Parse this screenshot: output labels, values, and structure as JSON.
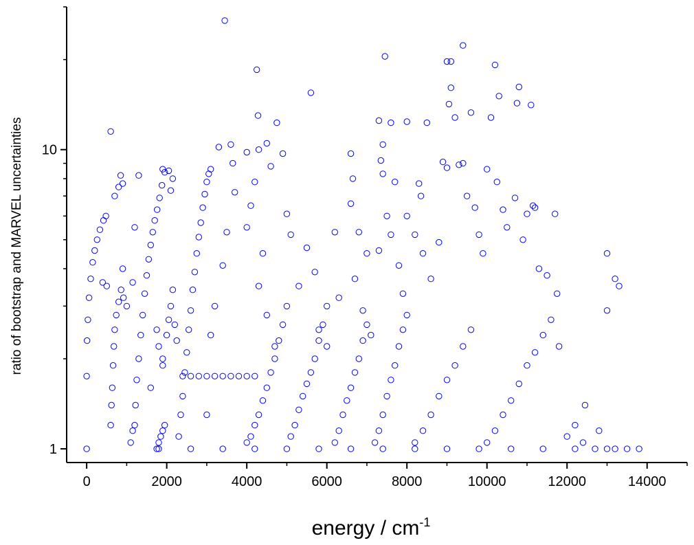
{
  "chart_data": {
    "type": "scatter",
    "title": "",
    "xlabel": "energy / cm",
    "xlabel_superscript": "-1",
    "ylabel": "ratio of bootstrap and MARVEL uncertainties",
    "xlim": [
      -500,
      15000
    ],
    "ylim": [
      0.9,
      30
    ],
    "yscale": "log",
    "x_ticks": [
      "0",
      "2000",
      "4000",
      "6000",
      "8000",
      "10000",
      "12000",
      "14000"
    ],
    "y_ticks": [
      "1",
      "10"
    ],
    "grid": false,
    "legend": "none",
    "marker": "open-circle",
    "marker_color": "#0000ff",
    "series": [
      {
        "values": [
          [
            0,
            1.0
          ],
          [
            0,
            1.75
          ],
          [
            10,
            2.3
          ],
          [
            30,
            2.7
          ],
          [
            60,
            3.2
          ],
          [
            100,
            3.7
          ],
          [
            150,
            4.2
          ],
          [
            200,
            4.6
          ],
          [
            260,
            5.0
          ],
          [
            330,
            5.4
          ],
          [
            420,
            5.8
          ],
          [
            480,
            6.0
          ],
          [
            600,
            1.2
          ],
          [
            620,
            1.4
          ],
          [
            640,
            1.6
          ],
          [
            660,
            1.9
          ],
          [
            680,
            2.2
          ],
          [
            700,
            2.5
          ],
          [
            740,
            2.8
          ],
          [
            800,
            3.1
          ],
          [
            860,
            3.4
          ],
          [
            900,
            4.0
          ],
          [
            920,
            3.2
          ],
          [
            1000,
            3.0
          ],
          [
            600,
            11.5
          ],
          [
            700,
            7.0
          ],
          [
            800,
            7.5
          ],
          [
            850,
            8.2
          ],
          [
            900,
            7.7
          ],
          [
            400,
            3.6
          ],
          [
            500,
            3.5
          ],
          [
            1200,
            1.2
          ],
          [
            1220,
            1.4
          ],
          [
            1250,
            1.7
          ],
          [
            1300,
            2.0
          ],
          [
            1350,
            2.4
          ],
          [
            1400,
            2.8
          ],
          [
            1450,
            3.3
          ],
          [
            1500,
            3.8
          ],
          [
            1550,
            4.3
          ],
          [
            1600,
            4.8
          ],
          [
            1650,
            5.3
          ],
          [
            1700,
            5.8
          ],
          [
            1760,
            6.3
          ],
          [
            1820,
            6.9
          ],
          [
            1880,
            7.6
          ],
          [
            1950,
            8.4
          ],
          [
            1900,
            8.6
          ],
          [
            1300,
            8.2
          ],
          [
            1200,
            5.5
          ],
          [
            1150,
            3.6
          ],
          [
            1100,
            1.05
          ],
          [
            1150,
            1.15
          ],
          [
            1600,
            1.6
          ],
          [
            1750,
            2.5
          ],
          [
            1800,
            2.2
          ],
          [
            1900,
            2.0
          ],
          [
            2000,
            2.4
          ],
          [
            2050,
            2.7
          ],
          [
            2100,
            3.0
          ],
          [
            2150,
            3.4
          ],
          [
            2200,
            2.6
          ],
          [
            2250,
            2.3
          ],
          [
            1750,
            1.0
          ],
          [
            1800,
            1.05
          ],
          [
            1850,
            1.1
          ],
          [
            1900,
            1.15
          ],
          [
            1950,
            1.2
          ],
          [
            2050,
            8.5
          ],
          [
            2150,
            8.0
          ],
          [
            2100,
            7.3
          ],
          [
            1900,
            1.9
          ],
          [
            2300,
            1.1
          ],
          [
            2350,
            1.3
          ],
          [
            2400,
            1.5
          ],
          [
            2450,
            1.8
          ],
          [
            2500,
            2.1
          ],
          [
            2550,
            2.5
          ],
          [
            2600,
            2.9
          ],
          [
            2650,
            3.4
          ],
          [
            2700,
            3.9
          ],
          [
            2750,
            4.5
          ],
          [
            2800,
            5.1
          ],
          [
            2850,
            5.7
          ],
          [
            2900,
            6.4
          ],
          [
            2950,
            7.1
          ],
          [
            3000,
            7.8
          ],
          [
            3050,
            8.3
          ],
          [
            3100,
            8.6
          ],
          [
            2400,
            1.75
          ],
          [
            2600,
            1.75
          ],
          [
            2800,
            1.75
          ],
          [
            3000,
            1.75
          ],
          [
            3200,
            1.75
          ],
          [
            3400,
            1.75
          ],
          [
            3600,
            1.75
          ],
          [
            3800,
            1.75
          ],
          [
            4000,
            1.75
          ],
          [
            4200,
            1.75
          ],
          [
            3300,
            10.2
          ],
          [
            3450,
            27.0
          ],
          [
            3600,
            10.4
          ],
          [
            3650,
            9.0
          ],
          [
            3700,
            7.2
          ],
          [
            3500,
            5.3
          ],
          [
            3400,
            4.1
          ],
          [
            3200,
            3.0
          ],
          [
            3100,
            2.4
          ],
          [
            3000,
            1.3
          ],
          [
            4000,
            1.05
          ],
          [
            4100,
            1.1
          ],
          [
            4200,
            1.2
          ],
          [
            4300,
            1.3
          ],
          [
            4400,
            1.45
          ],
          [
            4500,
            1.6
          ],
          [
            4600,
            1.8
          ],
          [
            4700,
            2.0
          ],
          [
            4800,
            2.3
          ],
          [
            4900,
            2.6
          ],
          [
            5000,
            3.0
          ],
          [
            4000,
            9.8
          ],
          [
            4250,
            18.5
          ],
          [
            4300,
            10.0
          ],
          [
            4280,
            13.0
          ],
          [
            4500,
            10.5
          ],
          [
            4600,
            8.8
          ],
          [
            4750,
            12.3
          ],
          [
            4900,
            9.7
          ],
          [
            4200,
            7.8
          ],
          [
            4100,
            6.5
          ],
          [
            4000,
            5.5
          ],
          [
            4400,
            4.5
          ],
          [
            4300,
            3.5
          ],
          [
            4500,
            2.8
          ],
          [
            4700,
            2.2
          ],
          [
            5100,
            1.1
          ],
          [
            5200,
            1.2
          ],
          [
            5300,
            1.35
          ],
          [
            5400,
            1.5
          ],
          [
            5500,
            1.65
          ],
          [
            5600,
            1.8
          ],
          [
            5700,
            2.0
          ],
          [
            5800,
            2.3
          ],
          [
            5900,
            2.6
          ],
          [
            6000,
            3.0
          ],
          [
            5000,
            6.1
          ],
          [
            5100,
            5.2
          ],
          [
            5300,
            3.5
          ],
          [
            5500,
            4.7
          ],
          [
            5600,
            15.5
          ],
          [
            5700,
            3.9
          ],
          [
            5800,
            2.5
          ],
          [
            6000,
            2.2
          ],
          [
            6200,
            5.3
          ],
          [
            6300,
            3.2
          ],
          [
            6200,
            1.05
          ],
          [
            6300,
            1.15
          ],
          [
            6400,
            1.3
          ],
          [
            6500,
            1.45
          ],
          [
            6600,
            1.6
          ],
          [
            6700,
            1.8
          ],
          [
            6800,
            2.0
          ],
          [
            6900,
            2.3
          ],
          [
            7000,
            2.6
          ],
          [
            6600,
            9.7
          ],
          [
            6650,
            8.0
          ],
          [
            6600,
            6.6
          ],
          [
            6800,
            5.3
          ],
          [
            7000,
            4.5
          ],
          [
            6700,
            3.7
          ],
          [
            6900,
            2.9
          ],
          [
            7100,
            2.4
          ],
          [
            7200,
            1.05
          ],
          [
            7300,
            1.15
          ],
          [
            7400,
            1.3
          ],
          [
            7500,
            1.5
          ],
          [
            7600,
            1.7
          ],
          [
            7700,
            1.9
          ],
          [
            7800,
            2.2
          ],
          [
            7900,
            2.5
          ],
          [
            8000,
            2.8
          ],
          [
            7300,
            12.5
          ],
          [
            7450,
            20.5
          ],
          [
            7400,
            10.4
          ],
          [
            7350,
            9.2
          ],
          [
            7400,
            8.3
          ],
          [
            7600,
            12.3
          ],
          [
            7700,
            7.8
          ],
          [
            7500,
            6.0
          ],
          [
            7300,
            4.6
          ],
          [
            7600,
            5.2
          ],
          [
            7800,
            4.1
          ],
          [
            7900,
            3.3
          ],
          [
            8000,
            6.0
          ],
          [
            8000,
            12.4
          ],
          [
            8300,
            7.7
          ],
          [
            8350,
            7.0
          ],
          [
            8500,
            12.3
          ],
          [
            8200,
            5.2
          ],
          [
            8400,
            4.5
          ],
          [
            8600,
            3.7
          ],
          [
            8800,
            4.9
          ],
          [
            8900,
            9.1
          ],
          [
            9000,
            8.7
          ],
          [
            8200,
            1.05
          ],
          [
            8400,
            1.15
          ],
          [
            8600,
            1.3
          ],
          [
            8800,
            1.5
          ],
          [
            9000,
            1.7
          ],
          [
            9200,
            1.9
          ],
          [
            9400,
            2.2
          ],
          [
            9600,
            2.5
          ],
          [
            9000,
            19.7
          ],
          [
            9100,
            19.7
          ],
          [
            9100,
            16.1
          ],
          [
            9050,
            14.2
          ],
          [
            9400,
            22.3
          ],
          [
            9200,
            12.8
          ],
          [
            9300,
            8.9
          ],
          [
            9400,
            9.0
          ],
          [
            9500,
            7.0
          ],
          [
            9600,
            13.3
          ],
          [
            9700,
            6.4
          ],
          [
            9800,
            5.2
          ],
          [
            9900,
            4.5
          ],
          [
            10000,
            8.6
          ],
          [
            10100,
            12.8
          ],
          [
            10200,
            19.2
          ],
          [
            10300,
            15.1
          ],
          [
            10250,
            7.8
          ],
          [
            10400,
            6.3
          ],
          [
            10500,
            5.5
          ],
          [
            10700,
            6.9
          ],
          [
            10750,
            14.3
          ],
          [
            10800,
            16.2
          ],
          [
            10900,
            5.0
          ],
          [
            11000,
            6.1
          ],
          [
            11100,
            14.1
          ],
          [
            11150,
            6.5
          ],
          [
            11200,
            6.4
          ],
          [
            11300,
            4.0
          ],
          [
            11500,
            3.8
          ],
          [
            11700,
            6.1
          ],
          [
            11750,
            3.3
          ],
          [
            10000,
            1.05
          ],
          [
            10200,
            1.15
          ],
          [
            10400,
            1.3
          ],
          [
            10600,
            1.45
          ],
          [
            10800,
            1.65
          ],
          [
            11000,
            1.9
          ],
          [
            11200,
            2.1
          ],
          [
            11400,
            2.4
          ],
          [
            11600,
            2.7
          ],
          [
            11800,
            2.2
          ],
          [
            12000,
            1.1
          ],
          [
            12200,
            1.2
          ],
          [
            12400,
            1.05
          ],
          [
            12450,
            1.4
          ],
          [
            12800,
            1.15
          ],
          [
            13000,
            1.0
          ],
          [
            13000,
            2.9
          ],
          [
            13000,
            4.5
          ],
          [
            13200,
            3.7
          ],
          [
            13300,
            3.5
          ],
          [
            1800,
            1.0
          ],
          [
            2600,
            1.0
          ],
          [
            3400,
            1.0
          ],
          [
            4200,
            1.0
          ],
          [
            5000,
            1.0
          ],
          [
            5800,
            1.0
          ],
          [
            6600,
            1.0
          ],
          [
            7400,
            1.0
          ],
          [
            8200,
            1.0
          ],
          [
            9000,
            1.0
          ],
          [
            9800,
            1.0
          ],
          [
            10600,
            1.0
          ],
          [
            11400,
            1.0
          ],
          [
            12200,
            1.0
          ],
          [
            12700,
            1.0
          ],
          [
            13200,
            1.0
          ],
          [
            13500,
            1.0
          ],
          [
            13800,
            1.0
          ]
        ]
      }
    ]
  }
}
